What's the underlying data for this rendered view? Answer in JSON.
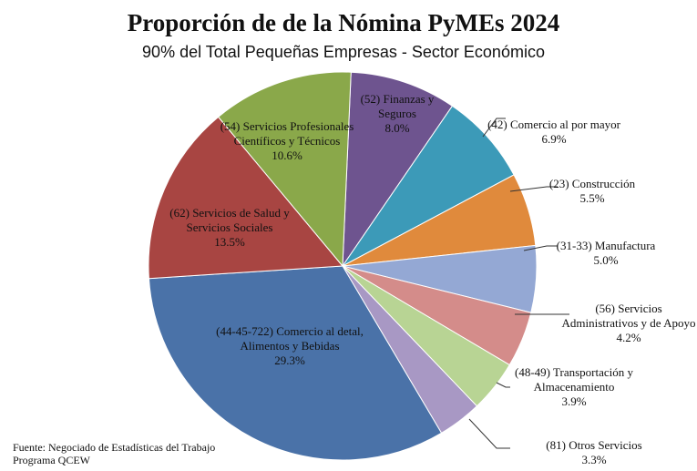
{
  "chart_data": {
    "type": "pie",
    "title": "Proporción de de la Nómina PyMEs 2024",
    "subtitle": "90% del Total Pequeñas Empresas - Sector Económico",
    "categories": [
      "(52) Finanzas y Seguros",
      "(42) Comercio al por mayor",
      "(23) Construcción",
      "(31-33) Manufactura",
      "(56) Servicios Administrativos y de Apoyo",
      "(48-49) Transportación y Almacenamiento",
      "(81) Otros Servicios",
      "(44-45-722) Comercio al detal, Alimentos y Bebidas",
      "(62) Servicios de Salud y Servicios Sociales",
      "(54) Servicios Profesionales Científicos y Técnicos"
    ],
    "values": [
      8.0,
      6.9,
      5.5,
      5.0,
      4.2,
      3.9,
      3.3,
      29.3,
      13.5,
      10.6
    ],
    "value_labels": [
      "8.0%",
      "6.9%",
      "5.5%",
      "5.0%",
      "4.2%",
      "3.9%",
      "3.3%",
      "29.3%",
      "13.5%",
      "10.6%"
    ],
    "colors": [
      "#6e548f",
      "#3c9ab8",
      "#e08a3c",
      "#94a8d4",
      "#d48c8a",
      "#b8d494",
      "#a898c4",
      "#4a72a8",
      "#a84542",
      "#8aa84a"
    ],
    "source": [
      "Fuente: Negociado de Estadísticas del Trabajo",
      "Programa QCEW"
    ]
  }
}
